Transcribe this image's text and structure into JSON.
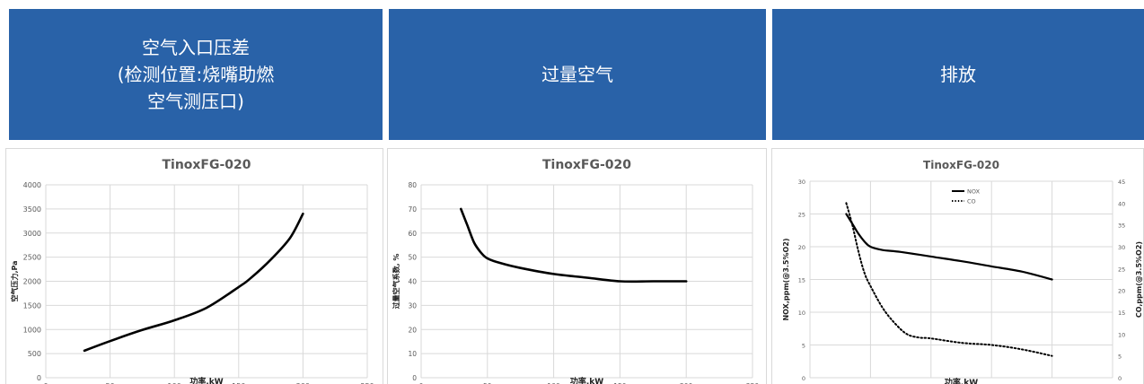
{
  "headers": [
    {
      "lines": [
        "空气入口压差",
        "(检测位置:烧嘴助燃",
        "空气测压口)"
      ]
    },
    {
      "lines": [
        "过量空气"
      ]
    },
    {
      "lines": [
        "排放"
      ]
    }
  ],
  "colors": {
    "header_bg": "#2962a8",
    "line": "#000000",
    "grid": "#d9d9d9"
  },
  "chart_data": [
    {
      "type": "line",
      "title": "TinoxFG-020",
      "xlabel": "功率,kW",
      "ylabel": "空气压力,Pa",
      "xlim": [
        0,
        250
      ],
      "xticks": [
        0,
        50,
        100,
        150,
        200,
        250
      ],
      "ylim": [
        0,
        4000
      ],
      "yticks": [
        0,
        500,
        1000,
        1500,
        2000,
        2500,
        3000,
        3500,
        4000
      ],
      "grid": true,
      "series": [
        {
          "style": "solid",
          "x": [
            30,
            50,
            75,
            100,
            125,
            150,
            160,
            175,
            190,
            200
          ],
          "y": [
            560,
            760,
            990,
            1190,
            1450,
            1880,
            2080,
            2450,
            2900,
            3400
          ]
        }
      ]
    },
    {
      "type": "line",
      "title": "TinoxFG-020",
      "xlabel": "功率,kW",
      "ylabel": "过量空气系数, %",
      "xlim": [
        0,
        250
      ],
      "xticks": [
        0,
        50,
        100,
        150,
        200,
        250
      ],
      "ylim": [
        0,
        80
      ],
      "yticks": [
        0,
        10,
        20,
        30,
        40,
        50,
        60,
        70,
        80
      ],
      "grid": true,
      "series": [
        {
          "style": "solid",
          "x": [
            30,
            35,
            40,
            45,
            50,
            60,
            75,
            100,
            125,
            150,
            175,
            200
          ],
          "y": [
            70,
            63,
            56,
            52,
            49.5,
            47.5,
            45.5,
            43,
            41.5,
            40,
            40,
            40
          ]
        }
      ]
    },
    {
      "type": "line",
      "title": "TinoxFG-020",
      "xlabel": "功率,kW",
      "ylabel": "NOX,ppm(@3.5%O2)",
      "y2label": "CO,ppm(@3.5%O2)",
      "xlim": [
        0,
        250
      ],
      "xticks": [
        0,
        50,
        100,
        150,
        200,
        250
      ],
      "ylim": [
        0,
        30
      ],
      "yticks": [
        0,
        5,
        10,
        15,
        20,
        25,
        30
      ],
      "y2lim": [
        0,
        45
      ],
      "y2ticks": [
        0,
        5,
        10,
        15,
        20,
        25,
        30,
        35,
        40,
        45
      ],
      "grid": true,
      "legend_position": "top-center",
      "series": [
        {
          "name": "NOX",
          "style": "solid",
          "axis": "left",
          "x": [
            30,
            35,
            40,
            45,
            50,
            60,
            75,
            100,
            125,
            150,
            175,
            200
          ],
          "y": [
            25,
            23.5,
            22,
            20.8,
            20,
            19.5,
            19.2,
            18.5,
            17.8,
            17,
            16.2,
            15
          ]
        },
        {
          "name": "CO",
          "style": "dotted",
          "axis": "right",
          "x": [
            30,
            35,
            40,
            45,
            50,
            60,
            70,
            80,
            90,
            100,
            125,
            150,
            175,
            200
          ],
          "y": [
            40,
            35,
            29,
            24,
            21,
            16,
            12.5,
            10,
            9.2,
            9,
            8,
            7.5,
            6.5,
            5
          ]
        }
      ]
    }
  ]
}
